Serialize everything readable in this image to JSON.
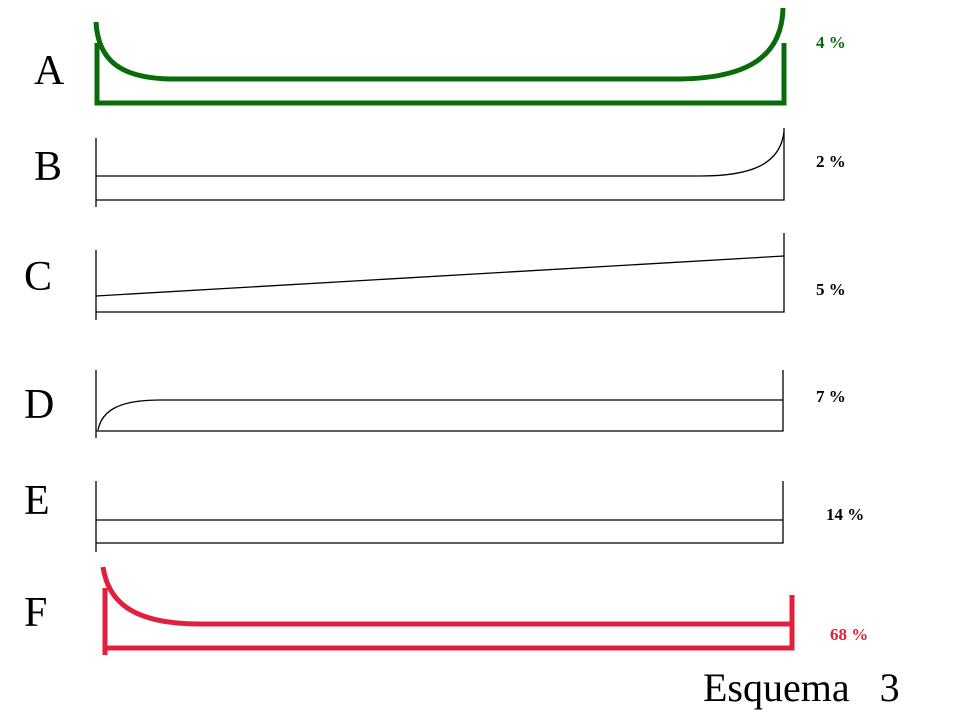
{
  "rows": [
    {
      "letter": "A",
      "percent": "4 %",
      "color": "#0a6b0a"
    },
    {
      "letter": "B",
      "percent": "2 %",
      "color": "#000000"
    },
    {
      "letter": "C",
      "percent": "5 %",
      "color": "#000000"
    },
    {
      "letter": "D",
      "percent": "7 %",
      "color": "#000000"
    },
    {
      "letter": "E",
      "percent": "14  %",
      "color": "#000000"
    },
    {
      "letter": "F",
      "percent": "68  %",
      "color": "#e0203c"
    }
  ],
  "caption": "Esquema   3"
}
